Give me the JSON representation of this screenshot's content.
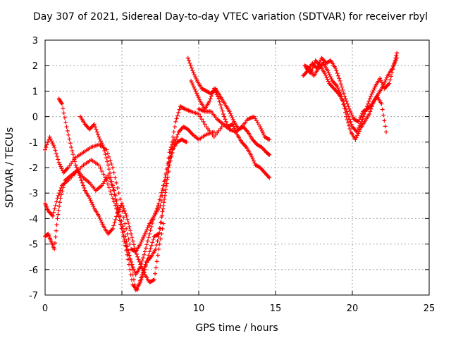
{
  "chart_data": {
    "type": "scatter",
    "title": "Day 307 of 2021, Sidereal Day-to-day VTEC variation (SDTVAR) for receiver rbyl",
    "xlabel": "GPS time / hours",
    "ylabel": "SDTVAR / TECUs",
    "xlim": [
      0,
      25
    ],
    "ylim": [
      -7,
      3
    ],
    "xticks": [
      "0",
      "5",
      "10",
      "15",
      "20",
      "25"
    ],
    "yticks": [
      "-7",
      "-6",
      "-5",
      "-4",
      "-3",
      "-2",
      "-1",
      "0",
      "1",
      "2",
      "3"
    ],
    "grid": true,
    "marker": "+",
    "color": "#ff0000",
    "series": [
      {
        "x": [
          0.0,
          0.3,
          0.6,
          0.9,
          1.2,
          1.5,
          2.0,
          2.5,
          3.0,
          3.5,
          4.0,
          4.4,
          4.8,
          5.2,
          5.6,
          5.9,
          6.2,
          6.5,
          6.8,
          7.1,
          7.5,
          7.8,
          8.1,
          8.4
        ],
        "y": [
          -1.3,
          -0.8,
          -1.2,
          -1.8,
          -2.2,
          -2.0,
          -1.6,
          -1.4,
          -1.2,
          -1.1,
          -1.3,
          -2.0,
          -3.0,
          -4.2,
          -5.2,
          -5.3,
          -5.0,
          -4.6,
          -4.2,
          -3.9,
          -3.5,
          -2.5,
          -1.4,
          -0.9
        ]
      },
      {
        "x": [
          0.0,
          0.2,
          0.5,
          0.8,
          1.1,
          1.5,
          2.0,
          2.5,
          3.0,
          3.5,
          4.0,
          4.4,
          4.8,
          5.1,
          5.4,
          5.7,
          6.0,
          6.3,
          6.6,
          6.9,
          7.2,
          7.5,
          7.8,
          8.1,
          8.4,
          8.7,
          9.0,
          9.3,
          9.6,
          10.0,
          10.5,
          11.0
        ],
        "y": [
          -3.4,
          -3.7,
          -3.9,
          -3.2,
          -2.7,
          -2.5,
          -2.2,
          -1.9,
          -1.7,
          -1.9,
          -2.5,
          -3.2,
          -3.9,
          -4.7,
          -5.6,
          -6.6,
          -6.8,
          -6.2,
          -5.7,
          -5.5,
          -5.2,
          -4.4,
          -3.1,
          -1.9,
          -1.1,
          -0.6,
          -0.4,
          -0.5,
          -0.7,
          -0.9,
          -0.7,
          -0.6
        ]
      },
      {
        "x": [
          0.0,
          0.2,
          0.4,
          0.6,
          0.8,
          1.0,
          1.3,
          1.7,
          2.1,
          2.5,
          2.9,
          3.3,
          3.7,
          4.1,
          4.5,
          4.9,
          5.3,
          5.6,
          5.9,
          6.2,
          6.5,
          6.8,
          7.1,
          7.4,
          7.7,
          8.0,
          8.2,
          8.5,
          8.8,
          9.1,
          9.5,
          10.0,
          10.5,
          11.0,
          11.5
        ],
        "y": [
          -4.7,
          -4.6,
          -4.9,
          -5.2,
          -4.0,
          -3.2,
          -2.5,
          -2.3,
          -2.1,
          -2.4,
          -2.6,
          -2.9,
          -2.7,
          -2.3,
          -2.9,
          -3.9,
          -4.9,
          -5.8,
          -6.8,
          -6.5,
          -6.0,
          -5.3,
          -4.7,
          -4.6,
          -3.5,
          -2.2,
          -1.2,
          -0.2,
          0.4,
          0.3,
          0.2,
          0.1,
          -0.4,
          -0.8,
          -0.4
        ]
      },
      {
        "x": [
          0.9,
          1.1,
          1.4,
          1.7,
          2.0,
          2.3,
          2.6,
          2.9,
          3.2,
          3.5,
          3.8,
          4.1,
          4.4,
          4.7,
          5.0,
          5.3,
          5.6,
          5.9,
          6.2,
          6.5,
          6.8,
          7.1,
          7.4,
          7.7
        ],
        "y": [
          0.7,
          0.5,
          -0.4,
          -1.2,
          -1.9,
          -2.4,
          -2.9,
          -3.2,
          -3.6,
          -3.9,
          -4.3,
          -4.6,
          -4.4,
          -3.8,
          -3.4,
          -3.9,
          -4.6,
          -5.3,
          -5.8,
          -6.2,
          -6.5,
          -6.4,
          -5.2,
          -4.2
        ]
      },
      {
        "x": [
          2.3,
          2.6,
          2.9,
          3.2,
          3.5,
          3.8,
          4.1,
          4.4,
          4.7,
          5.0,
          5.3,
          5.6,
          5.9,
          6.2,
          6.5,
          6.8,
          7.1,
          7.4,
          7.7,
          8.0,
          8.3,
          8.6,
          8.9,
          9.2
        ],
        "y": [
          0.0,
          -0.3,
          -0.5,
          -0.3,
          -0.8,
          -1.2,
          -1.9,
          -2.7,
          -3.6,
          -4.4,
          -5.1,
          -5.7,
          -6.2,
          -5.9,
          -5.3,
          -4.6,
          -3.9,
          -3.4,
          -2.7,
          -1.9,
          -1.3,
          -1.0,
          -0.9,
          -1.0
        ]
      },
      {
        "x": [
          9.3,
          9.6,
          9.9,
          10.2,
          10.5,
          10.8,
          11.1,
          11.4,
          11.7,
          12.0,
          12.3,
          12.6,
          12.9,
          13.2,
          13.5,
          13.8,
          14.1,
          14.4,
          14.6
        ],
        "y": [
          2.3,
          1.8,
          1.4,
          1.1,
          1.0,
          0.9,
          1.1,
          0.8,
          0.5,
          0.2,
          -0.2,
          -0.5,
          -0.4,
          -0.6,
          -0.9,
          -1.1,
          -1.2,
          -1.4,
          -1.5
        ]
      },
      {
        "x": [
          9.5,
          9.8,
          10.1,
          10.4,
          10.7,
          11.0,
          11.3,
          11.6,
          11.9,
          12.2,
          12.5,
          12.8,
          13.1,
          13.4,
          13.7,
          14.0,
          14.3,
          14.6
        ],
        "y": [
          1.4,
          1.0,
          0.6,
          0.3,
          0.6,
          1.1,
          0.7,
          0.1,
          -0.4,
          -0.3,
          -0.7,
          -1.0,
          -1.2,
          -1.5,
          -1.9,
          -2.0,
          -2.2,
          -2.4
        ]
      },
      {
        "x": [
          10.0,
          10.4,
          10.8,
          11.2,
          11.6,
          12.0,
          12.4,
          12.8,
          13.2,
          13.6,
          14.0,
          14.3,
          14.6
        ],
        "y": [
          0.3,
          0.2,
          0.2,
          -0.1,
          -0.3,
          -0.5,
          -0.6,
          -0.4,
          -0.1,
          0.0,
          -0.4,
          -0.8,
          -0.9
        ]
      },
      {
        "x": [
          16.8,
          17.1,
          17.4,
          17.7,
          18.0,
          18.3,
          18.6,
          18.9,
          19.2,
          19.5,
          19.8,
          20.1,
          20.4,
          20.7,
          21.0,
          21.3,
          21.6,
          21.9,
          22.2
        ],
        "y": [
          1.6,
          1.8,
          2.1,
          1.9,
          2.3,
          2.1,
          2.2,
          1.9,
          1.4,
          0.8,
          0.3,
          -0.1,
          -0.2,
          0.2,
          0.3,
          0.5,
          0.8,
          0.5,
          -0.6
        ]
      },
      {
        "x": [
          16.9,
          17.2,
          17.5,
          17.8,
          18.1,
          18.4,
          18.7,
          19.0,
          19.3,
          19.6,
          19.9,
          20.2,
          20.5,
          20.8,
          21.1,
          21.4,
          21.7,
          22.0,
          22.3,
          22.6,
          22.9
        ],
        "y": [
          2.0,
          1.9,
          1.6,
          1.9,
          2.1,
          1.8,
          1.4,
          1.2,
          0.8,
          0.0,
          -0.6,
          -0.9,
          -0.5,
          -0.2,
          0.1,
          0.6,
          0.9,
          1.2,
          1.6,
          1.9,
          2.3
        ]
      },
      {
        "x": [
          17.0,
          17.3,
          17.6,
          17.9,
          18.2,
          18.5,
          18.8,
          19.1,
          19.4,
          19.7,
          20.0,
          20.3,
          20.6,
          20.9,
          21.2,
          21.5,
          21.8,
          22.1,
          22.4,
          22.7,
          22.9
        ],
        "y": [
          1.9,
          1.7,
          2.2,
          2.0,
          1.7,
          1.3,
          1.1,
          0.9,
          0.6,
          0.1,
          -0.4,
          -0.6,
          -0.2,
          0.3,
          0.8,
          1.2,
          1.5,
          1.1,
          1.3,
          2.0,
          2.5
        ]
      }
    ]
  }
}
